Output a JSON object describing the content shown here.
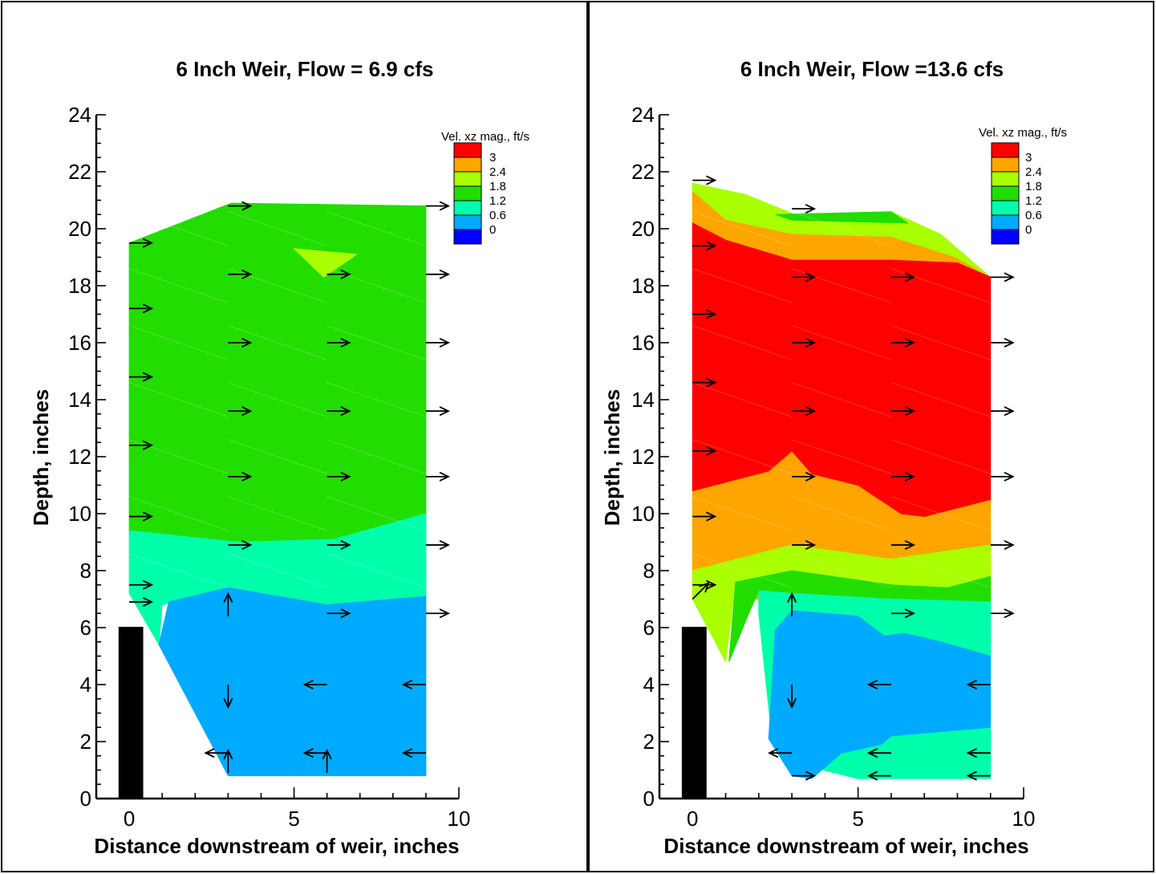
{
  "chart_data": [
    {
      "type": "contour",
      "title": "6 Inch Weir, Flow = 6.9 cfs",
      "xlabel": "Distance downstream of weir, inches",
      "ylabel": "Depth, inches",
      "xlim": [
        -1,
        10
      ],
      "ylim": [
        0,
        24
      ],
      "xticks": [
        "0",
        "5",
        "10"
      ],
      "yticks": [
        "0",
        "2",
        "4",
        "6",
        "8",
        "10",
        "12",
        "14",
        "16",
        "18",
        "20",
        "22",
        "24"
      ],
      "legend": {
        "title": "Vel. xz mag., ft/s",
        "levels": [
          "3",
          "2.4",
          "1.8",
          "1.2",
          "0.6",
          "0"
        ],
        "colors": [
          "#ff0000",
          "#ffa500",
          "#aaff00",
          "#22dd00",
          "#00ffaa",
          "#00aaff",
          "#0000ff"
        ],
        "placement": "top-right"
      },
      "weir": {
        "x": [
          -0.3,
          0.4
        ],
        "y": [
          0,
          6
        ]
      },
      "regions": [
        {
          "level": "1.2-1.8",
          "color": "#22dd00",
          "points": [
            [
              0,
              19.5
            ],
            [
              3.1,
              20.9
            ],
            [
              9,
              20.8
            ],
            [
              9,
              10
            ],
            [
              6.2,
              9.1
            ],
            [
              3.3,
              9
            ],
            [
              0,
              9.4
            ]
          ]
        },
        {
          "level": "1.8-2.4",
          "color": "#aaff00",
          "points": [
            [
              5,
              19.3
            ],
            [
              6.9,
              19.1
            ],
            [
              5.9,
              18.3
            ]
          ]
        },
        {
          "level": "0.6-1.2",
          "color": "#00ffaa",
          "points": [
            [
              0,
              9.4
            ],
            [
              3.3,
              9
            ],
            [
              6.2,
              9.1
            ],
            [
              9,
              10
            ],
            [
              9,
              7.1
            ],
            [
              6,
              6.8
            ],
            [
              3,
              7.4
            ],
            [
              1,
              6.8
            ],
            [
              0.9,
              5.4
            ],
            [
              0,
              7.2
            ]
          ]
        },
        {
          "level": "0-0.6",
          "color": "#00aaff",
          "points": [
            [
              1.2,
              6.9
            ],
            [
              3,
              7.4
            ],
            [
              6,
              6.8
            ],
            [
              9,
              7.1
            ],
            [
              9,
              0.8
            ],
            [
              6,
              0.8
            ],
            [
              3,
              0.8
            ],
            [
              0.9,
              5.4
            ]
          ]
        }
      ],
      "vectors": [
        [
          0,
          19.5,
          1,
          0
        ],
        [
          0,
          17.2,
          1,
          0
        ],
        [
          0,
          14.8,
          1,
          0
        ],
        [
          0,
          12.4,
          1,
          0
        ],
        [
          0,
          9.9,
          1,
          0
        ],
        [
          0,
          7.5,
          1,
          0
        ],
        [
          0,
          6.9,
          1,
          0
        ],
        [
          3,
          20.8,
          1,
          0
        ],
        [
          3,
          18.4,
          1,
          0
        ],
        [
          3,
          16,
          1,
          0
        ],
        [
          3,
          13.6,
          1,
          0
        ],
        [
          3,
          11.3,
          1,
          0
        ],
        [
          3,
          8.9,
          1,
          0
        ],
        [
          3,
          6.4,
          0,
          1
        ],
        [
          3,
          4,
          0,
          -1
        ],
        [
          3,
          1.6,
          -1,
          0
        ],
        [
          3,
          0.9,
          0,
          1
        ],
        [
          6,
          18.4,
          1,
          0
        ],
        [
          6,
          16,
          1,
          0
        ],
        [
          6,
          13.6,
          1,
          0
        ],
        [
          6,
          11.3,
          1,
          0
        ],
        [
          6,
          8.9,
          1,
          0
        ],
        [
          6,
          6.5,
          1,
          0
        ],
        [
          6,
          4,
          -1,
          0
        ],
        [
          6,
          1.6,
          -1,
          0
        ],
        [
          6,
          0.9,
          0,
          1
        ],
        [
          9,
          20.8,
          1,
          0
        ],
        [
          9,
          18.4,
          1,
          0
        ],
        [
          9,
          16,
          1,
          0
        ],
        [
          9,
          13.6,
          1,
          0
        ],
        [
          9,
          11.3,
          1,
          0
        ],
        [
          9,
          8.9,
          1,
          0
        ],
        [
          9,
          6.5,
          1,
          0
        ],
        [
          9,
          4,
          -1,
          0
        ],
        [
          9,
          1.6,
          -1,
          0
        ]
      ]
    },
    {
      "type": "contour",
      "title": "6 Inch Weir, Flow =13.6 cfs",
      "xlabel": "Distance downstream of weir, inches",
      "ylabel": "Depth, inches",
      "xlim": [
        -1,
        10
      ],
      "ylim": [
        0,
        24
      ],
      "xticks": [
        "0",
        "5",
        "10"
      ],
      "yticks": [
        "0",
        "2",
        "4",
        "6",
        "8",
        "10",
        "12",
        "14",
        "16",
        "18",
        "20",
        "22",
        "24"
      ],
      "legend": {
        "title": "Vel. xz mag., ft/s",
        "levels": [
          "3",
          "2.4",
          "1.8",
          "1.2",
          "0.6",
          "0"
        ],
        "colors": [
          "#ff0000",
          "#ffa500",
          "#aaff00",
          "#22dd00",
          "#00ffaa",
          "#00aaff",
          "#0000ff"
        ],
        "placement": "top-right"
      },
      "weir": {
        "x": [
          -0.3,
          0.4
        ],
        "y": [
          0,
          6
        ]
      },
      "regions": [
        {
          "level": "1.8-2.4",
          "color": "#aaff00",
          "points": [
            [
              0,
              21.6
            ],
            [
              1.6,
              21.2
            ],
            [
              3.1,
              20.5
            ],
            [
              6,
              20.6
            ],
            [
              7.5,
              19.8
            ],
            [
              9,
              18.3
            ],
            [
              0,
              18.3
            ]
          ]
        },
        {
          "level": "1.2-1.8",
          "color": "#22dd00",
          "points": [
            [
              2.5,
              20.5
            ],
            [
              6,
              20.6
            ],
            [
              6.5,
              20.2
            ],
            [
              3,
              20.3
            ]
          ]
        },
        {
          "level": "2.4-3",
          "color": "#ffa500",
          "points": [
            [
              0,
              21.3
            ],
            [
              1,
              20.3
            ],
            [
              3,
              19.8
            ],
            [
              6,
              19.7
            ],
            [
              7.9,
              19
            ],
            [
              9,
              18.3
            ],
            [
              0,
              18.3
            ]
          ]
        },
        {
          "level": "2.4-3",
          "color": "#ffa500",
          "points": [
            [
              0,
              10.8
            ],
            [
              2.3,
              11.5
            ],
            [
              3,
              12.2
            ],
            [
              3.6,
              11.4
            ],
            [
              5,
              11
            ],
            [
              6.3,
              10
            ],
            [
              7,
              9.9
            ],
            [
              9,
              10.5
            ],
            [
              9,
              7
            ],
            [
              0,
              7
            ]
          ]
        },
        {
          "level": "3+",
          "color": "#ff0000",
          "points": [
            [
              0,
              20.2
            ],
            [
              1,
              19.6
            ],
            [
              3,
              18.9
            ],
            [
              6,
              18.9
            ],
            [
              8,
              18.8
            ],
            [
              9,
              18.3
            ],
            [
              9,
              10.5
            ],
            [
              7,
              9.9
            ],
            [
              6.3,
              10
            ],
            [
              5,
              11
            ],
            [
              3.6,
              11.4
            ],
            [
              3,
              12.2
            ],
            [
              2.3,
              11.5
            ],
            [
              0,
              10.8
            ]
          ]
        },
        {
          "level": "1.8-2.4",
          "color": "#aaff00",
          "points": [
            [
              0,
              8
            ],
            [
              3,
              8.9
            ],
            [
              6,
              8.4
            ],
            [
              9,
              8.9
            ],
            [
              9,
              7.8
            ],
            [
              7.7,
              7.4
            ],
            [
              6,
              7.5
            ],
            [
              3,
              8
            ],
            [
              1.3,
              7.6
            ],
            [
              0,
              7
            ]
          ]
        },
        {
          "level": "1.8-2.4",
          "color": "#aaff00",
          "points": [
            [
              0,
              7
            ],
            [
              1.3,
              7.6
            ],
            [
              1,
              4.8
            ],
            [
              0,
              7
            ]
          ]
        },
        {
          "level": "1.2-1.8",
          "color": "#22dd00",
          "points": [
            [
              1.3,
              7.6
            ],
            [
              3,
              8
            ],
            [
              6,
              7.5
            ],
            [
              7.7,
              7.4
            ],
            [
              9,
              7.8
            ],
            [
              9,
              6.9
            ],
            [
              6,
              7
            ],
            [
              3,
              7.2
            ],
            [
              2,
              7.3
            ],
            [
              1.7,
              6.5
            ],
            [
              1.1,
              4.8
            ]
          ]
        },
        {
          "level": "0.6-1.2",
          "color": "#00ffaa",
          "points": [
            [
              2,
              7.3
            ],
            [
              3,
              7.2
            ],
            [
              6,
              7
            ],
            [
              9,
              6.9
            ],
            [
              9,
              0.7
            ],
            [
              5,
              0.7
            ],
            [
              3.6,
              1.1
            ],
            [
              2.4,
              2.1
            ],
            [
              2,
              6.5
            ]
          ]
        },
        {
          "level": "0-0.6",
          "color": "#00aaff",
          "points": [
            [
              2.5,
              5.9
            ],
            [
              3,
              6.6
            ],
            [
              5,
              6.4
            ],
            [
              5.8,
              5.7
            ],
            [
              6.4,
              5.8
            ],
            [
              7.5,
              5.5
            ],
            [
              9,
              5
            ],
            [
              9,
              2.5
            ],
            [
              6,
              2.2
            ],
            [
              5.7,
              1.9
            ],
            [
              4.5,
              1.6
            ],
            [
              3.6,
              0.7
            ],
            [
              3,
              0.8
            ],
            [
              2.3,
              2.1
            ]
          ]
        }
      ],
      "vectors": [
        [
          0,
          21.7,
          1,
          0
        ],
        [
          0,
          19.4,
          1,
          0
        ],
        [
          0,
          17,
          1,
          0
        ],
        [
          0,
          14.6,
          1,
          0
        ],
        [
          0,
          12.2,
          1,
          0
        ],
        [
          0,
          9.9,
          1,
          0
        ],
        [
          0,
          7.5,
          1,
          0
        ],
        [
          0,
          7,
          1,
          1
        ],
        [
          3,
          20.7,
          1,
          0
        ],
        [
          3,
          18.3,
          1,
          0
        ],
        [
          3,
          16,
          1,
          0
        ],
        [
          3,
          13.6,
          1,
          0
        ],
        [
          3,
          11.3,
          1,
          0
        ],
        [
          3,
          8.9,
          1,
          0
        ],
        [
          3,
          6.4,
          0,
          1
        ],
        [
          3,
          4,
          0,
          -1
        ],
        [
          3,
          1.6,
          -1,
          0
        ],
        [
          3,
          0.8,
          1,
          0
        ],
        [
          6,
          18.3,
          1,
          0
        ],
        [
          6,
          16,
          1,
          0
        ],
        [
          6,
          13.6,
          1,
          0
        ],
        [
          6,
          11.3,
          1,
          0
        ],
        [
          6,
          8.9,
          1,
          0
        ],
        [
          6,
          6.5,
          1,
          0
        ],
        [
          6,
          4,
          -1,
          0
        ],
        [
          6,
          1.6,
          -1,
          0
        ],
        [
          6,
          0.8,
          -1,
          0
        ],
        [
          9,
          18.3,
          1,
          0
        ],
        [
          9,
          16,
          1,
          0
        ],
        [
          9,
          13.6,
          1,
          0
        ],
        [
          9,
          11.3,
          1,
          0
        ],
        [
          9,
          8.9,
          1,
          0
        ],
        [
          9,
          6.5,
          1,
          0
        ],
        [
          9,
          4,
          -1,
          0
        ],
        [
          9,
          1.6,
          -1,
          0
        ],
        [
          9,
          0.8,
          -1,
          0
        ]
      ]
    }
  ]
}
